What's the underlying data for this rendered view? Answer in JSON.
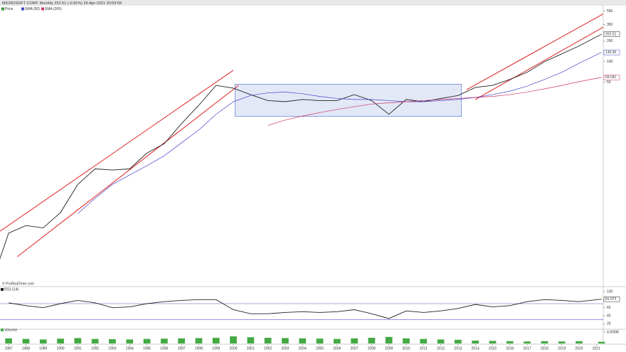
{
  "chart_data": [
    {
      "type": "line",
      "title": "MICROSOFT CORP. Monthly 252.51 (-0.81%) 29-Apr-2021 20:59:59",
      "source": "© ProRealTime.com",
      "log_scale": true,
      "xlim": [
        1986.5,
        2021.4
      ],
      "ylim": [
        0.055,
        600
      ],
      "yticks": [
        550,
        350,
        200,
        100,
        50
      ],
      "x": [
        1986.3,
        1987,
        1988,
        1989,
        1990,
        1991,
        1992,
        1993,
        1994,
        1995,
        1996,
        1997,
        1998,
        1999,
        2000,
        2001,
        2002,
        2003,
        2004,
        2005,
        2006,
        2007,
        2008,
        2009,
        2010,
        2011,
        2012,
        2013,
        2014,
        2015,
        2016,
        2017,
        2018,
        2019,
        2020,
        2021.3
      ],
      "series": [
        {
          "name": "Price",
          "color": "#222222",
          "legend_color": "#3a9a3a",
          "values": [
            0.094,
            0.31,
            0.4,
            0.37,
            0.62,
            1.6,
            2.7,
            2.6,
            2.7,
            4.6,
            6.3,
            12.4,
            23,
            45,
            41,
            33,
            27,
            26,
            28,
            27,
            27,
            33,
            27,
            17,
            28,
            26,
            29,
            32,
            42,
            45,
            55,
            70,
            100,
            130,
            170,
            252.51
          ]
        },
        {
          "name": "SMA (50)",
          "color": "#4444cc",
          "values": [
            null,
            null,
            null,
            null,
            null,
            0.6,
            1.0,
            1.6,
            2.2,
            3.0,
            4.2,
            6.5,
            10,
            17,
            26,
            32,
            35,
            36,
            34,
            31,
            29,
            28,
            28,
            27,
            26,
            26,
            27,
            28,
            30,
            33,
            37,
            44,
            55,
            70,
            95,
            136.95
          ]
        },
        {
          "name": "SMA (200)",
          "color": "#cc3366",
          "values": [
            null,
            null,
            null,
            null,
            null,
            null,
            null,
            null,
            null,
            null,
            null,
            null,
            null,
            null,
            null,
            null,
            11.7,
            14,
            16,
            18,
            20,
            22,
            24,
            25,
            26,
            27,
            28,
            29,
            30,
            31,
            33,
            36,
            40,
            45,
            51,
            59.041
          ]
        }
      ],
      "channels": [
        [
          [
            1986.5,
            0.33
          ],
          [
            2000.0,
            75
          ]
        ],
        [
          [
            1987.5,
            0.14
          ],
          [
            2000.3,
            45
          ]
        ],
        [
          [
            2013.5,
            39
          ],
          [
            2021.4,
            500
          ]
        ],
        [
          [
            2014.0,
            28
          ],
          [
            2021.4,
            320
          ]
        ]
      ],
      "channel_color": "#e02020",
      "range_box": {
        "x": [
          2000.1,
          2013.2
        ],
        "y": [
          15.8,
          47
        ]
      },
      "range_box_color": "#4466cc"
    },
    {
      "type": "line",
      "title": "RSI (14)",
      "xlim": [
        1986.5,
        2021.4
      ],
      "ylim": [
        10,
        100
      ],
      "yticks": [
        100,
        80,
        60,
        40,
        20
      ],
      "levels": [
        70,
        30
      ],
      "x": [
        1986.3,
        1987,
        1988,
        1989,
        1990,
        1991,
        1992,
        1993,
        1994,
        1995,
        1996,
        1997,
        1998,
        1999,
        2000,
        2001,
        2002,
        2003,
        2004,
        2005,
        2006,
        2007,
        2008,
        2009,
        2010,
        2011,
        2012,
        2013,
        2014,
        2015,
        2016,
        2017,
        2018,
        2019,
        2020,
        2021.3
      ],
      "series": [
        {
          "name": "RSI",
          "color": "#222222",
          "values": [
            null,
            72,
            65,
            60,
            70,
            78,
            72,
            60,
            62,
            70,
            75,
            78,
            80,
            80,
            55,
            45,
            45,
            48,
            50,
            48,
            50,
            55,
            45,
            33,
            52,
            48,
            52,
            58,
            68,
            62,
            65,
            75,
            80,
            78,
            75,
            81.072
          ]
        }
      ]
    },
    {
      "type": "bar",
      "title": "Volume",
      "xlim": [
        1986.5,
        2021.4
      ],
      "ylim": [
        0,
        4000
      ],
      "yticks": [
        {
          "value": 4000,
          "label": "4,000M"
        }
      ],
      "xticks": [
        1987,
        1988,
        1989,
        1990,
        1991,
        1992,
        1993,
        1994,
        1995,
        1996,
        1997,
        1998,
        1999,
        2000,
        2001,
        2002,
        2003,
        2004,
        2005,
        2006,
        2007,
        2008,
        2009,
        2010,
        2011,
        2012,
        2013,
        2014,
        2015,
        2016,
        2017,
        2018,
        2019,
        2020,
        2021
      ],
      "color": "#44aa44",
      "x": [
        1986.3,
        1987,
        1988,
        1989,
        1990,
        1991,
        1992,
        1993,
        1994,
        1995,
        1996,
        1997,
        1998,
        1999,
        2000,
        2001,
        2002,
        2003,
        2004,
        2005,
        2006,
        2007,
        2008,
        2009,
        2010,
        2011,
        2012,
        2013,
        2014,
        2015,
        2016,
        2017,
        2018,
        2019,
        2020,
        2021.3
      ],
      "values": [
        1500,
        1800,
        1600,
        1400,
        1700,
        1900,
        1600,
        1500,
        1400,
        1600,
        1700,
        1800,
        1900,
        2000,
        2500,
        2200,
        2000,
        1900,
        1800,
        1700,
        1600,
        1800,
        2000,
        2300,
        1800,
        1600,
        1400,
        1300,
        1000,
        900,
        800,
        700,
        800,
        700,
        800,
        600
      ]
    }
  ]
}
